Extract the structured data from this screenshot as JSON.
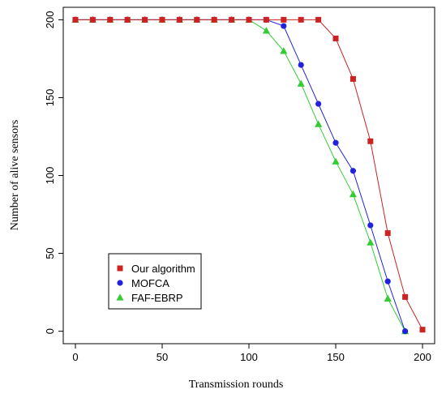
{
  "chart_data": {
    "type": "line",
    "xlabel": "Transmission rounds",
    "ylabel": "Number of alive sensors",
    "xlim": [
      -7,
      207
    ],
    "ylim": [
      -8,
      208
    ],
    "xticks": [
      0,
      50,
      100,
      150,
      200
    ],
    "yticks": [
      0,
      50,
      100,
      150,
      200
    ],
    "legend_position": "bottom-left",
    "grid": false,
    "series": [
      {
        "name": "Our algorithm",
        "color": "#cc2222",
        "marker": "square",
        "x": [
          0,
          10,
          20,
          30,
          40,
          50,
          60,
          70,
          80,
          90,
          100,
          110,
          120,
          130,
          140,
          150,
          160,
          170,
          180,
          190,
          200
        ],
        "y": [
          200,
          200,
          200,
          200,
          200,
          200,
          200,
          200,
          200,
          200,
          200,
          200,
          200,
          200,
          200,
          188,
          162,
          122,
          63,
          22,
          1
        ]
      },
      {
        "name": "MOFCA",
        "color": "#2222dd",
        "marker": "circle",
        "x": [
          0,
          10,
          20,
          30,
          40,
          50,
          60,
          70,
          80,
          90,
          100,
          110,
          120,
          130,
          140,
          150,
          160,
          170,
          180,
          190
        ],
        "y": [
          200,
          200,
          200,
          200,
          200,
          200,
          200,
          200,
          200,
          200,
          200,
          200,
          196,
          171,
          146,
          121,
          103,
          68,
          32,
          0
        ]
      },
      {
        "name": "FAF-EBRP",
        "color": "#33cc33",
        "marker": "triangle",
        "x": [
          0,
          10,
          20,
          30,
          40,
          50,
          60,
          70,
          80,
          90,
          100,
          110,
          120,
          130,
          140,
          150,
          160,
          170,
          180,
          190
        ],
        "y": [
          200,
          200,
          200,
          200,
          200,
          200,
          200,
          200,
          200,
          200,
          200,
          193,
          180,
          159,
          133,
          109,
          88,
          57,
          21,
          0
        ]
      }
    ]
  }
}
